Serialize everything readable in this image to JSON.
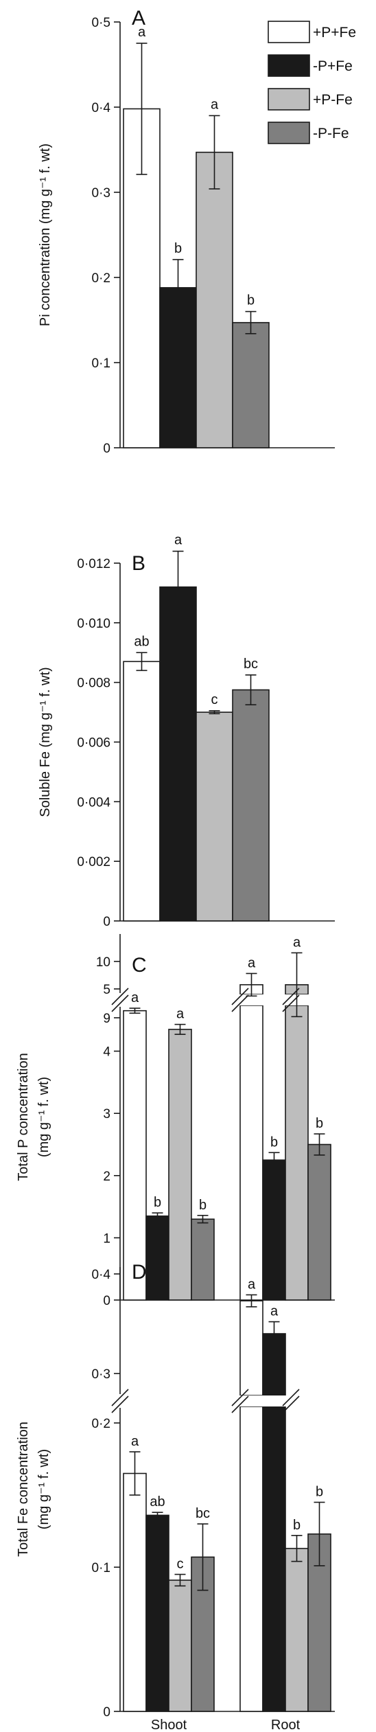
{
  "legend": [
    {
      "label": "+P+Fe",
      "color": "#ffffff"
    },
    {
      "label": "-P+Fe",
      "color": "#1a1a1a"
    },
    {
      "label": "+P-Fe",
      "color": "#bdbdbd"
    },
    {
      "label": "-P-Fe",
      "color": "#7f7f7f"
    }
  ],
  "chart_data": [
    {
      "panel": "A",
      "type": "bar",
      "ylabel": "Pi concentration (mg g⁻¹ f. wt)",
      "ylim": [
        0,
        0.5
      ],
      "yticks": [
        "0",
        "0·1",
        "0·2",
        "0·3",
        "0·4",
        "0·5"
      ],
      "groups": [
        {
          "name": "",
          "bars": [
            {
              "series": "+P+Fe",
              "value": 0.398,
              "err": 0.077,
              "letter": "a"
            },
            {
              "series": "-P+Fe",
              "value": 0.188,
              "err": 0.033,
              "letter": "b"
            },
            {
              "series": "+P-Fe",
              "value": 0.347,
              "err": 0.043,
              "letter": "a"
            },
            {
              "series": "-P-Fe",
              "value": 0.147,
              "err": 0.013,
              "letter": "b"
            }
          ]
        }
      ]
    },
    {
      "panel": "B",
      "type": "bar",
      "ylabel": "Soluble Fe (mg g⁻¹ f. wt)",
      "ylim": [
        0,
        0.012
      ],
      "yticks": [
        "0",
        "0·002",
        "0·004",
        "0·006",
        "0·008",
        "0·010",
        "0·012"
      ],
      "groups": [
        {
          "name": "",
          "bars": [
            {
              "series": "+P+Fe",
              "value": 0.0087,
              "err": 0.0003,
              "letter": "ab"
            },
            {
              "series": "-P+Fe",
              "value": 0.0112,
              "err": 0.0012,
              "letter": "a"
            },
            {
              "series": "+P-Fe",
              "value": 0.007,
              "err": 5e-05,
              "letter": "c"
            },
            {
              "series": "-P-Fe",
              "value": 0.00775,
              "err": 0.0005,
              "letter": "bc"
            }
          ]
        }
      ]
    },
    {
      "panel": "C",
      "type": "bar",
      "ylabel_lines": [
        "Total P concentration",
        "(mg g⁻¹ f. wt)"
      ],
      "ylim_lower": [
        0,
        5
      ],
      "ylim_upper": [
        9,
        10.5
      ],
      "yticks_lower": [
        "0",
        "1",
        "2",
        "3",
        "4",
        "5"
      ],
      "yticks_upper": [
        "9",
        "10"
      ],
      "groups": [
        {
          "name": "Shoot",
          "bars": [
            {
              "series": "+P+Fe",
              "value": 4.65,
              "err": 0.04,
              "letter": "a"
            },
            {
              "series": "-P+Fe",
              "value": 1.35,
              "err": 0.05,
              "letter": "b"
            },
            {
              "series": "+P-Fe",
              "value": 4.35,
              "err": 0.08,
              "letter": "a"
            },
            {
              "series": "-P-Fe",
              "value": 1.3,
              "err": 0.06,
              "letter": "b"
            }
          ]
        },
        {
          "name": "Root",
          "bars": [
            {
              "series": "+P+Fe",
              "value": 9.88,
              "err": 0.3,
              "letter": "a"
            },
            {
              "series": "-P+Fe",
              "value": 2.25,
              "err": 0.12,
              "letter": "b"
            },
            {
              "series": "+P-Fe",
              "value": 9.88,
              "err": 0.85,
              "letter": "a"
            },
            {
              "series": "-P-Fe",
              "value": 2.5,
              "err": 0.17,
              "letter": "b"
            }
          ]
        }
      ]
    },
    {
      "panel": "D",
      "type": "bar",
      "ylabel_lines": [
        "Total Fe concentration",
        "(mg g⁻¹ f. wt)"
      ],
      "ylim_lower": [
        0,
        0.2
      ],
      "ylim_upper": [
        0.3,
        0.4
      ],
      "yticks_lower": [
        "0",
        "0·1",
        "0·2"
      ],
      "yticks_upper": [
        "0·3",
        "0·4"
      ],
      "groups": [
        {
          "name": "Shoot",
          "bars": [
            {
              "series": "+P+Fe",
              "value": 0.165,
              "err": 0.015,
              "letter": "a"
            },
            {
              "series": "-P+Fe",
              "value": 0.136,
              "err": 0.002,
              "letter": "ab"
            },
            {
              "series": "+P-Fe",
              "value": 0.091,
              "err": 0.004,
              "letter": "c"
            },
            {
              "series": "-P-Fe",
              "value": 0.107,
              "err": 0.023,
              "letter": "bc"
            }
          ]
        },
        {
          "name": "Root",
          "bars": [
            {
              "series": "+P+Fe",
              "value": 0.373,
              "err": 0.006,
              "letter": "a"
            },
            {
              "series": "-P+Fe",
              "value": 0.34,
              "err": 0.012,
              "letter": "a"
            },
            {
              "series": "+P-Fe",
              "value": 0.113,
              "err": 0.009,
              "letter": "b"
            },
            {
              "series": "-P-Fe",
              "value": 0.123,
              "err": 0.022,
              "letter": "b"
            }
          ]
        }
      ]
    }
  ]
}
